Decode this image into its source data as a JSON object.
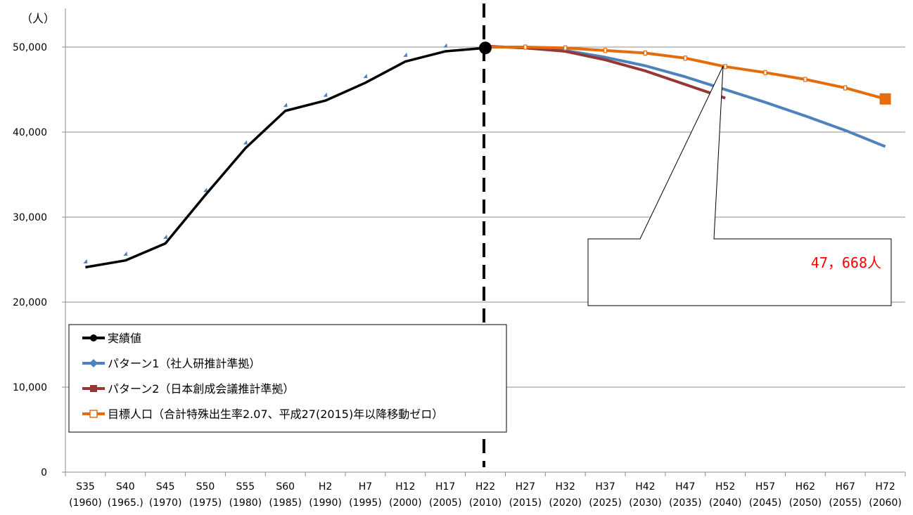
{
  "chart_data": {
    "type": "line",
    "y_unit_label": "（人）",
    "ylim": [
      0,
      55000
    ],
    "y_ticks": [
      0,
      10000,
      20000,
      30000,
      40000,
      50000
    ],
    "y_tick_labels": [
      "0",
      "10,000",
      "20,000",
      "30,000",
      "40,000",
      "50,000"
    ],
    "grid": true,
    "categories": [
      {
        "era": "S35",
        "year": "(1960)"
      },
      {
        "era": "S40",
        "year": "(1965.)"
      },
      {
        "era": "S45",
        "year": "(1970)"
      },
      {
        "era": "S50",
        "year": "(1975)"
      },
      {
        "era": "S55",
        "year": "(1980)"
      },
      {
        "era": "S60",
        "year": "(1985)"
      },
      {
        "era": "H2",
        "year": "(1990)"
      },
      {
        "era": "H7",
        "year": "(1995)"
      },
      {
        "era": "H12",
        "year": "(2000)"
      },
      {
        "era": "H17",
        "year": "(2005)"
      },
      {
        "era": "H22",
        "year": "(2010)"
      },
      {
        "era": "H27",
        "year": "(2015)"
      },
      {
        "era": "H32",
        "year": "(2020)"
      },
      {
        "era": "H37",
        "year": "(2025)"
      },
      {
        "era": "H42",
        "year": "(2030)"
      },
      {
        "era": "H47",
        "year": "(2035)"
      },
      {
        "era": "H52",
        "year": "(2040)"
      },
      {
        "era": "H57",
        "year": "(2045)"
      },
      {
        "era": "H62",
        "year": "(2050)"
      },
      {
        "era": "H67",
        "year": "(2055)"
      },
      {
        "era": "H72",
        "year": "(2060)"
      }
    ],
    "series": [
      {
        "name": "実績値",
        "color": "#000000",
        "values": [
          24100,
          24900,
          26900,
          32600,
          38100,
          42500,
          43700,
          45800,
          48300,
          49500,
          49900,
          null,
          null,
          null,
          null,
          null,
          null,
          null,
          null,
          null,
          null
        ]
      },
      {
        "name": "パターン1（社人研推計準拠）",
        "color": "#4f81bd",
        "values": [
          24800,
          25700,
          27700,
          33200,
          38800,
          43200,
          44400,
          46600,
          49100,
          50200,
          50400,
          50000,
          49600,
          48800,
          47800,
          46500,
          45000,
          43500,
          41900,
          40200,
          38300
        ]
      },
      {
        "name": "パターン2（日本創成会議推計準拠）",
        "color": "#953735",
        "values": [
          null,
          null,
          null,
          null,
          null,
          null,
          null,
          null,
          null,
          null,
          50100,
          49900,
          49500,
          48500,
          47200,
          45600,
          44000,
          null,
          null,
          null,
          null
        ]
      },
      {
        "name": "目標人口（合計特殊出生率2.07、平成27(2015)年以降移動ゼロ）",
        "color": "#e46c0a",
        "values": [
          null,
          null,
          null,
          null,
          null,
          null,
          null,
          null,
          null,
          null,
          50000,
          50000,
          49900,
          49600,
          49300,
          48700,
          47700,
          47000,
          46200,
          45200,
          43900
        ]
      }
    ],
    "divider_after_category": "H22",
    "annotation": {
      "text": "47，668人",
      "points_to_category": "H52"
    }
  }
}
